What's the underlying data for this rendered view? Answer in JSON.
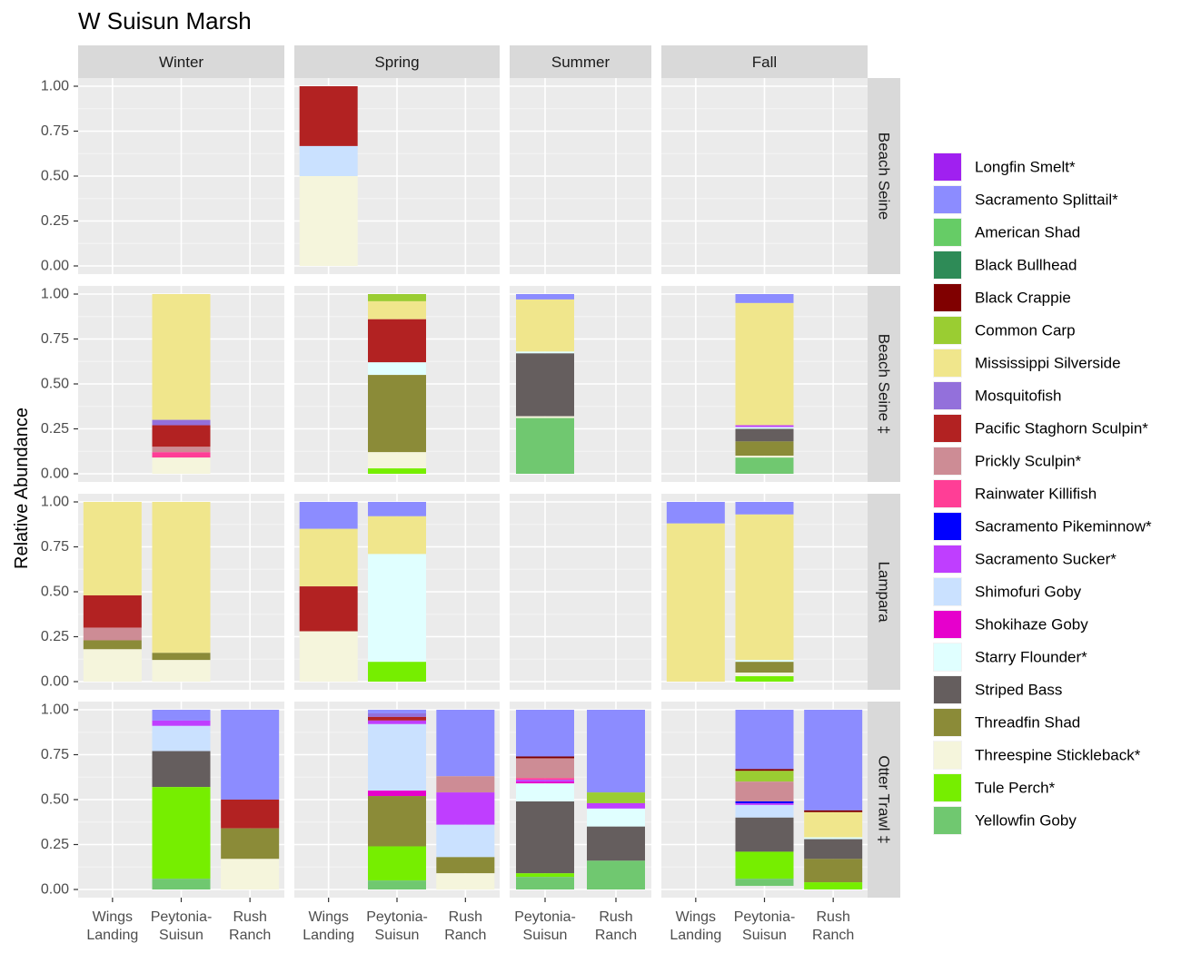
{
  "chart_data": {
    "type": "bar",
    "stacked": true,
    "title": "W Suisun Marsh",
    "ylabel": "Relative Abundance",
    "xlabel": "",
    "ylim": [
      0,
      1
    ],
    "y_ticks": [
      "0.00",
      "0.25",
      "0.50",
      "0.75",
      "1.00"
    ],
    "y_tick_values": [
      0,
      0.25,
      0.5,
      0.75,
      1.0
    ],
    "columns": [
      {
        "label": "Winter",
        "categories": [
          "Wings Landing",
          "Peytonia-Suisun",
          "Rush Ranch"
        ],
        "tick_lines": [
          [
            "Wings",
            "Landing"
          ],
          [
            "Peytonia-",
            "Suisun"
          ],
          [
            "Rush",
            "Ranch"
          ]
        ]
      },
      {
        "label": "Spring",
        "categories": [
          "Wings Landing",
          "Peytonia-Suisun",
          "Rush Ranch"
        ],
        "tick_lines": [
          [
            "Wings",
            "Landing"
          ],
          [
            "Peytonia-",
            "Suisun"
          ],
          [
            "Rush",
            "Ranch"
          ]
        ]
      },
      {
        "label": "Summer",
        "categories": [
          "Peytonia-Suisun",
          "Rush Ranch"
        ],
        "tick_lines": [
          [
            "Peytonia-",
            "Suisun"
          ],
          [
            "Rush",
            "Ranch"
          ]
        ]
      },
      {
        "label": "Fall",
        "categories": [
          "Wings Landing",
          "Peytonia-Suisun",
          "Rush Ranch"
        ],
        "tick_lines": [
          [
            "Wings",
            "Landing"
          ],
          [
            "Peytonia-",
            "Suisun"
          ],
          [
            "Rush",
            "Ranch"
          ]
        ]
      }
    ],
    "rows": [
      "Beach Seine",
      "Beach Seine ‡",
      "Lampara",
      "Otter Trawl ‡"
    ],
    "species": [
      {
        "name": "Longfin Smelt*",
        "color": "#A020F0"
      },
      {
        "name": "Sacramento Splittail*",
        "color": "#8C8CFF"
      },
      {
        "name": "American Shad",
        "color": "#66CC66"
      },
      {
        "name": "Black Bullhead",
        "color": "#2E8B57"
      },
      {
        "name": "Black Crappie",
        "color": "#800000"
      },
      {
        "name": "Common Carp",
        "color": "#9ACD32"
      },
      {
        "name": "Mississippi Silverside",
        "color": "#F0E68C"
      },
      {
        "name": "Mosquitofish",
        "color": "#9370DB"
      },
      {
        "name": "Pacific Staghorn Sculpin*",
        "color": "#B22222"
      },
      {
        "name": "Prickly Sculpin*",
        "color": "#CD8C95"
      },
      {
        "name": "Rainwater Killifish",
        "color": "#FF3E96"
      },
      {
        "name": "Sacramento Pikeminnow*",
        "color": "#0000FF"
      },
      {
        "name": "Sacramento Sucker*",
        "color": "#BF3EFF"
      },
      {
        "name": "Shimofuri Goby",
        "color": "#CAE1FF"
      },
      {
        "name": "Shokihaze Goby",
        "color": "#E600CC"
      },
      {
        "name": "Starry Flounder*",
        "color": "#E0FFFF"
      },
      {
        "name": "Striped Bass",
        "color": "#655E5E"
      },
      {
        "name": "Threadfin Shad",
        "color": "#8B8B38"
      },
      {
        "name": "Threespine Stickleback*",
        "color": "#F5F5DC"
      },
      {
        "name": "Tule Perch*",
        "color": "#76EE00"
      },
      {
        "name": "Yellowfin Goby",
        "color": "#70C870"
      }
    ],
    "bars": [
      {
        "row": 0,
        "col": 1,
        "category": "Wings Landing",
        "segments": {
          "Pacific Staghorn Sculpin*": 0.333,
          "Shimofuri Goby": 0.167,
          "Threespine Stickleback*": 0.5
        }
      },
      {
        "row": 1,
        "col": 0,
        "category": "Peytonia-Suisun",
        "segments": {
          "Mississippi Silverside": 0.7,
          "Mosquitofish": 0.03,
          "Pacific Staghorn Sculpin*": 0.12,
          "Prickly Sculpin*": 0.03,
          "Rainwater Killifish": 0.03,
          "Threespine Stickleback*": 0.09
        }
      },
      {
        "row": 1,
        "col": 1,
        "category": "Peytonia-Suisun",
        "segments": {
          "Common Carp": 0.04,
          "Mississippi Silverside": 0.1,
          "Pacific Staghorn Sculpin*": 0.24,
          "Starry Flounder*": 0.07,
          "Threadfin Shad": 0.43,
          "Threespine Stickleback*": 0.09,
          "Tule Perch*": 0.03
        }
      },
      {
        "row": 1,
        "col": 2,
        "category": "Peytonia-Suisun",
        "segments": {
          "Sacramento Splittail*": 0.03,
          "Mississippi Silverside": 0.29,
          "Starry Flounder*": 0.01,
          "Striped Bass": 0.35,
          "Threespine Stickleback*": 0.01,
          "Yellowfin Goby": 0.31
        }
      },
      {
        "row": 1,
        "col": 3,
        "category": "Peytonia-Suisun",
        "segments": {
          "Sacramento Splittail*": 0.05,
          "Mississippi Silverside": 0.68,
          "Sacramento Sucker*": 0.01,
          "Starry Flounder*": 0.01,
          "Striped Bass": 0.07,
          "Threadfin Shad": 0.08,
          "Threespine Stickleback*": 0.01,
          "Yellowfin Goby": 0.09
        }
      },
      {
        "row": 2,
        "col": 0,
        "category": "Wings Landing",
        "segments": {
          "Mississippi Silverside": 0.52,
          "Pacific Staghorn Sculpin*": 0.18,
          "Prickly Sculpin*": 0.07,
          "Threadfin Shad": 0.05,
          "Threespine Stickleback*": 0.18
        }
      },
      {
        "row": 2,
        "col": 0,
        "category": "Peytonia-Suisun",
        "segments": {
          "Mississippi Silverside": 0.84,
          "Threadfin Shad": 0.04,
          "Threespine Stickleback*": 0.12
        }
      },
      {
        "row": 2,
        "col": 1,
        "category": "Wings Landing",
        "segments": {
          "Sacramento Splittail*": 0.15,
          "Mississippi Silverside": 0.32,
          "Pacific Staghorn Sculpin*": 0.25,
          "Threespine Stickleback*": 0.28
        }
      },
      {
        "row": 2,
        "col": 1,
        "category": "Peytonia-Suisun",
        "segments": {
          "Sacramento Splittail*": 0.08,
          "Mississippi Silverside": 0.21,
          "Starry Flounder*": 0.6,
          "Tule Perch*": 0.11
        }
      },
      {
        "row": 2,
        "col": 3,
        "category": "Wings Landing",
        "segments": {
          "Sacramento Splittail*": 0.12,
          "Mississippi Silverside": 0.88
        }
      },
      {
        "row": 2,
        "col": 3,
        "category": "Peytonia-Suisun",
        "segments": {
          "Sacramento Splittail*": 0.07,
          "Mississippi Silverside": 0.81,
          "Starry Flounder*": 0.01,
          "Threadfin Shad": 0.06,
          "Threespine Stickleback*": 0.02,
          "Tule Perch*": 0.03
        }
      },
      {
        "row": 3,
        "col": 0,
        "category": "Peytonia-Suisun",
        "segments": {
          "Sacramento Splittail*": 0.06,
          "Sacramento Sucker*": 0.03,
          "Shimofuri Goby": 0.14,
          "Striped Bass": 0.2,
          "Tule Perch*": 0.51,
          "Yellowfin Goby": 0.06
        }
      },
      {
        "row": 3,
        "col": 0,
        "category": "Rush Ranch",
        "segments": {
          "Sacramento Splittail*": 0.5,
          "Pacific Staghorn Sculpin*": 0.16,
          "Threadfin Shad": 0.17,
          "Threespine Stickleback*": 0.17
        }
      },
      {
        "row": 3,
        "col": 1,
        "category": "Peytonia-Suisun",
        "segments": {
          "Shokihaze Goby": 0.03,
          "Mosquitofish": 0.02,
          "Sacramento Splittail*": 0.02,
          "Pacific Staghorn Sculpin*": 0.02,
          "Shimofuri Goby": 0.37,
          "Sacramento Sucker*": 0.02,
          "Threadfin Shad": 0.28,
          "Tule Perch*": 0.19,
          "Yellowfin Goby": 0.05
        }
      },
      {
        "row": 3,
        "col": 1,
        "category": "Rush Ranch",
        "segments": {
          "Sacramento Splittail*": 0.37,
          "Prickly Sculpin*": 0.09,
          "Sacramento Sucker*": 0.18,
          "Shimofuri Goby": 0.18,
          "Threadfin Shad": 0.09,
          "Threespine Stickleback*": 0.09
        }
      },
      {
        "row": 3,
        "col": 2,
        "category": "Peytonia-Suisun",
        "segments": {
          "Shokihaze Goby": 0.01,
          "Sacramento Splittail*": 0.26,
          "Black Crappie": 0.01,
          "Prickly Sculpin*": 0.11,
          "Rainwater Killifish": 0.01,
          "Sacramento Sucker*": 0.01,
          "Starry Flounder*": 0.1,
          "Striped Bass": 0.4,
          "Tule Perch*": 0.02,
          "Yellowfin Goby": 0.07
        }
      },
      {
        "row": 3,
        "col": 2,
        "category": "Rush Ranch",
        "segments": {
          "Sacramento Splittail*": 0.46,
          "Common Carp": 0.06,
          "Sacramento Sucker*": 0.03,
          "Starry Flounder*": 0.1,
          "Striped Bass": 0.19,
          "Yellowfin Goby": 0.16
        }
      },
      {
        "row": 3,
        "col": 3,
        "category": "Peytonia-Suisun",
        "segments": {
          "Sacramento Splittail*": 0.33,
          "Black Crappie": 0.01,
          "Common Carp": 0.06,
          "Prickly Sculpin*": 0.11,
          "Sacramento Sucker*": 0.01,
          "Shimofuri Goby": 0.07,
          "Sacramento Pikeminnow*": 0.01,
          "Striped Bass": 0.19,
          "Tule Perch*": 0.15,
          "Yellowfin Goby": 0.04
        }
      },
      {
        "row": 3,
        "col": 3,
        "category": "Rush Ranch",
        "segments": {
          "Sacramento Splittail*": 0.56,
          "Mississippi Silverside": 0.14,
          "Starry Flounder*": 0.01,
          "Black Crappie": 0.01,
          "Striped Bass": 0.11,
          "Threadfin Shad": 0.13,
          "Tule Perch*": 0.04
        }
      }
    ]
  }
}
